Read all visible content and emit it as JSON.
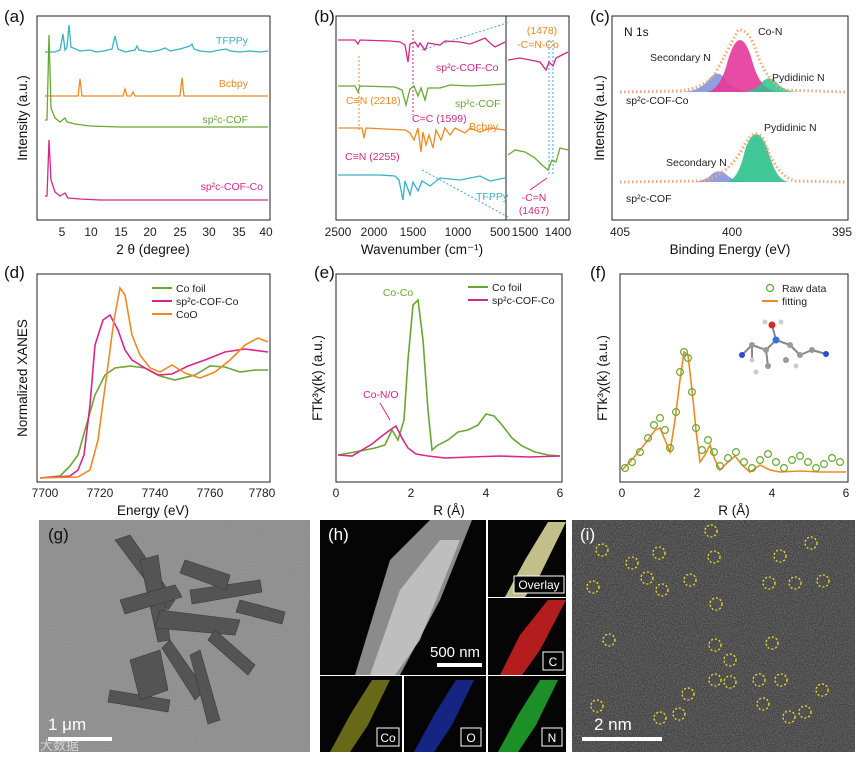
{
  "panels": {
    "a": {
      "label": "(a)",
      "xlabel": "2 θ (degree)",
      "ylabel": "Intensity (a.u.)",
      "xticks": [
        "5",
        "10",
        "15",
        "20",
        "25",
        "30",
        "35",
        "40"
      ],
      "curves": [
        {
          "name": "TFPPy",
          "color": "#3bb0c9"
        },
        {
          "name": "Bcbpy",
          "color": "#ef8a22"
        },
        {
          "name": "sp²c-COF",
          "color": "#67a832"
        },
        {
          "name": "sp²c-COF-Co",
          "color": "#d6268a"
        }
      ]
    },
    "b": {
      "label": "(b)",
      "xlabel": "Wavenumber (cm⁻¹)",
      "ylabel": "",
      "xticks": [
        "2500",
        "2000",
        "1500",
        "1000",
        "500"
      ],
      "xticks_zoom": [
        "1500",
        "1400"
      ],
      "annotations": [
        "C≡N (2218)",
        "C=C (1599)",
        "C≡N (2255)",
        "(1478)",
        "-C=N-Co",
        "-C=N",
        "(1467)"
      ],
      "curves": [
        {
          "name": "sp²c-COF-Co",
          "color": "#d6268a"
        },
        {
          "name": "sp²c-COF",
          "color": "#67a832"
        },
        {
          "name": "Bcbpy",
          "color": "#ef8a22"
        },
        {
          "name": "TFPPy",
          "color": "#3bb0c9"
        }
      ]
    },
    "c": {
      "label": "(c)",
      "title": "N 1s",
      "xlabel": "Binding Energy (eV)",
      "ylabel": "Intensity (a.u.)",
      "xticks": [
        "405",
        "400",
        "395"
      ],
      "top_sample": "sp²c-COF-Co",
      "bottom_sample": "sp²c-COF",
      "peaks_top": [
        "Co-N",
        "Secondary N",
        "Pydidinic N"
      ],
      "peaks_bottom": [
        "Pydidinic N",
        "Secondary N"
      ],
      "colors": {
        "coN": "#e6379a",
        "secondary": "#7b8fdc",
        "pyridinic": "#2ec28b",
        "raw": "#f0a878"
      }
    },
    "d": {
      "label": "(d)",
      "xlabel": "Energy (eV)",
      "ylabel": "Normalized XANES",
      "xticks": [
        "7700",
        "7720",
        "7740",
        "7760",
        "7780"
      ],
      "legend": [
        "Co foil",
        "sp²c-COF-Co",
        "CoO"
      ],
      "colors": [
        "#67a832",
        "#d6268a",
        "#ef8a22"
      ]
    },
    "e": {
      "label": "(e)",
      "xlabel": "R (Å)",
      "ylabel": "FTk³χ(k) (a.u.)",
      "xticks": [
        "0",
        "2",
        "4",
        "6"
      ],
      "legend": [
        "Co foil",
        "sp²c-COF-Co"
      ],
      "annotations": [
        "Co-Co",
        "Co-N/O"
      ],
      "colors": [
        "#67a832",
        "#d6268a"
      ]
    },
    "f": {
      "label": "(f)",
      "xlabel": "R (Å)",
      "ylabel": "FTk³χ(k) (a.u.)",
      "xticks": [
        "0",
        "2",
        "4",
        "6"
      ],
      "legend": [
        "Raw data",
        "fitting"
      ],
      "colors": [
        "#67a832",
        "#ef8a22"
      ]
    },
    "g": {
      "label": "(g)",
      "scale_bar": "1 μm"
    },
    "h": {
      "label": "(h)",
      "scale_bar": "500 nm",
      "maps": [
        "Overlay",
        "C",
        "Co",
        "O",
        "N"
      ]
    },
    "i": {
      "label": "(i)",
      "scale_bar": "2 nm"
    }
  },
  "watermark": "大数据"
}
